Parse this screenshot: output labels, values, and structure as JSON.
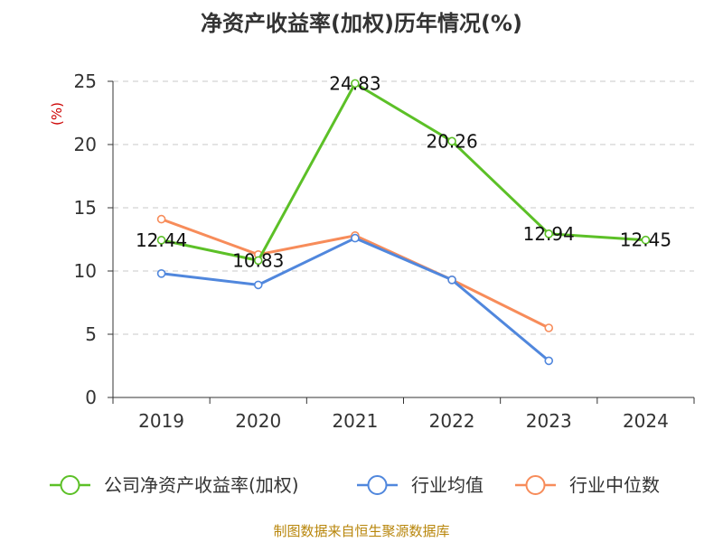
{
  "chart_data": {
    "type": "line",
    "title": "净资产收益率(加权)历年情况(%)",
    "ylabel": "(%)",
    "xlabel": "",
    "categories": [
      "2019",
      "2020",
      "2021",
      "2022",
      "2023",
      "2024"
    ],
    "ylim": [
      0,
      25
    ],
    "yticks": [
      0,
      5,
      10,
      15,
      20,
      25
    ],
    "grid": true,
    "legend_position": "bottom",
    "series": [
      {
        "name": "公司净资产收益率(加权)",
        "color": "#5cc027",
        "values": [
          12.44,
          10.83,
          24.83,
          20.26,
          12.94,
          12.45
        ],
        "data_labels": [
          "12.44",
          "10.83",
          "24.83",
          "20.26",
          "12.94",
          "12.45"
        ]
      },
      {
        "name": "行业均值",
        "color": "#5087dd",
        "values": [
          9.8,
          8.9,
          12.6,
          9.3,
          2.9,
          null
        ]
      },
      {
        "name": "行业中位数",
        "color": "#f78c5a",
        "values": [
          14.1,
          11.3,
          12.8,
          9.3,
          5.5,
          null
        ]
      }
    ]
  },
  "footer": "制图数据来自恒生聚源数据库"
}
